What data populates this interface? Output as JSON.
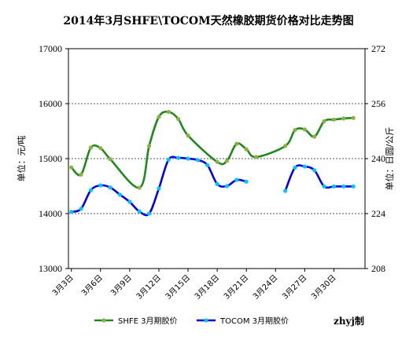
{
  "chart_data": {
    "type": "line",
    "title": "2014年3月SHFE\\TOCOM天然橡胶期货价格对比走势图",
    "ylabel_left": "单位：元/吨",
    "ylabel_right": "单位：日圆/公斤",
    "ylim_left": [
      13000,
      17000
    ],
    "ylim_right": [
      208,
      272
    ],
    "yticks_left": [
      "13000",
      "14000",
      "15000",
      "16000",
      "17000"
    ],
    "yticks_right": [
      "208",
      "224",
      "240",
      "256",
      "272"
    ],
    "xticks": [
      "3月3日",
      "3月6日",
      "3月9日",
      "3月12日",
      "3月15日",
      "3月18日",
      "3月21日",
      "3月24日",
      "3月27日",
      "3月30日"
    ],
    "xtick_days": [
      3,
      6,
      9,
      12,
      15,
      18,
      21,
      24,
      27,
      30
    ],
    "xlim": [
      2.7,
      33.2
    ],
    "grid": true,
    "legend_position": "bottom",
    "credit": "zhyj制",
    "series": [
      {
        "name": "SHFE 3月期胶价",
        "axis": "left",
        "color": "#1e8a1e",
        "marker_color": "#8db040",
        "x": [
          3,
          4,
          5,
          6,
          7,
          10,
          11,
          12,
          13,
          14,
          15,
          18,
          19,
          20,
          21,
          22,
          25,
          26,
          27,
          28,
          29,
          30,
          31,
          32
        ],
        "y": [
          14840,
          14710,
          15200,
          15190,
          14990,
          14470,
          15230,
          15760,
          15850,
          15720,
          15420,
          14940,
          14960,
          15270,
          15170,
          15030,
          15230,
          15520,
          15530,
          15400,
          15680,
          15710,
          15730,
          15740
        ]
      },
      {
        "name": "TOCOM 3月期胶价",
        "axis": "right",
        "color": "#0000ee",
        "marker_color": "#00c8e8",
        "segments": [
          {
            "x": [
              3,
              4,
              5,
              6,
              7,
              8,
              9,
              10,
              11,
              12,
              13,
              14,
              15,
              16,
              17,
              18,
              19,
              20,
              21
            ],
            "y": [
              224.5,
              225.4,
              230.8,
              232.2,
              231.6,
              229.5,
              227.4,
              224.6,
              224.0,
              231.3,
              239.7,
              240.2,
              240.0,
              239.6,
              238.1,
              232.6,
              232.0,
              233.8,
              233.3
            ]
          },
          {
            "x": [
              25,
              26,
              27,
              28,
              29,
              30,
              31,
              32
            ],
            "y": [
              230.6,
              237.4,
              237.7,
              236.6,
              231.9,
              231.9,
              231.9,
              231.9
            ]
          }
        ]
      }
    ]
  }
}
